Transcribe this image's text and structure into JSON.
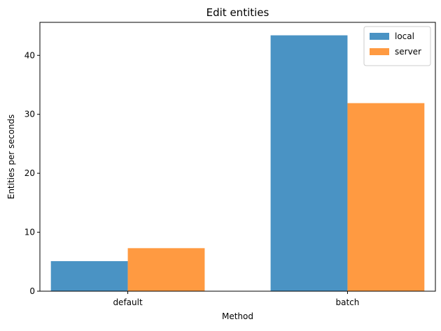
{
  "chart_data": {
    "type": "bar",
    "title": "Edit entities",
    "xlabel": "Method",
    "ylabel": "Entities per seconds",
    "categories": [
      "default",
      "batch"
    ],
    "series": [
      {
        "name": "local",
        "values": [
          5.1,
          43.4
        ],
        "color": "#4a93c4"
      },
      {
        "name": "server",
        "values": [
          7.3,
          31.9
        ],
        "color": "#ff9a41"
      }
    ],
    "ylim": [
      0,
      45.6
    ],
    "yticks": [
      0,
      10,
      20,
      30,
      40
    ],
    "grid": false,
    "legend_position": "top-right"
  }
}
